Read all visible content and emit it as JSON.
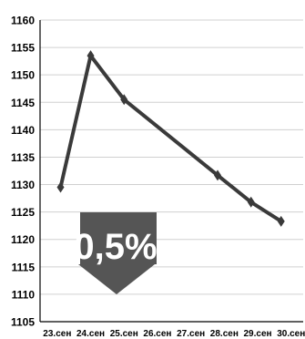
{
  "chart_data": {
    "type": "line",
    "categories": [
      "23.сен",
      "24.сен",
      "25.сен",
      "26.сен",
      "27.сен",
      "28.сен",
      "29.сен",
      "30.сен"
    ],
    "x": [
      0.1,
      1.0,
      2.0,
      4.8,
      5.8,
      6.7
    ],
    "series": [
      {
        "values": [
          1129.5,
          1153.5,
          1145.5,
          1131.7,
          1126.8,
          1123.3
        ]
      }
    ],
    "ylim": [
      1105,
      1160
    ],
    "yticks": [
      1105,
      1110,
      1115,
      1120,
      1125,
      1130,
      1135,
      1140,
      1145,
      1150,
      1155,
      1160
    ],
    "grid": true,
    "colors": {
      "line": "#3a3a3a",
      "marker": "#3a3a3a",
      "grid": "#d0d0d0",
      "badge": "#555555"
    }
  },
  "badge": {
    "text": "0,5%",
    "icon": "down-arrow-icon"
  }
}
